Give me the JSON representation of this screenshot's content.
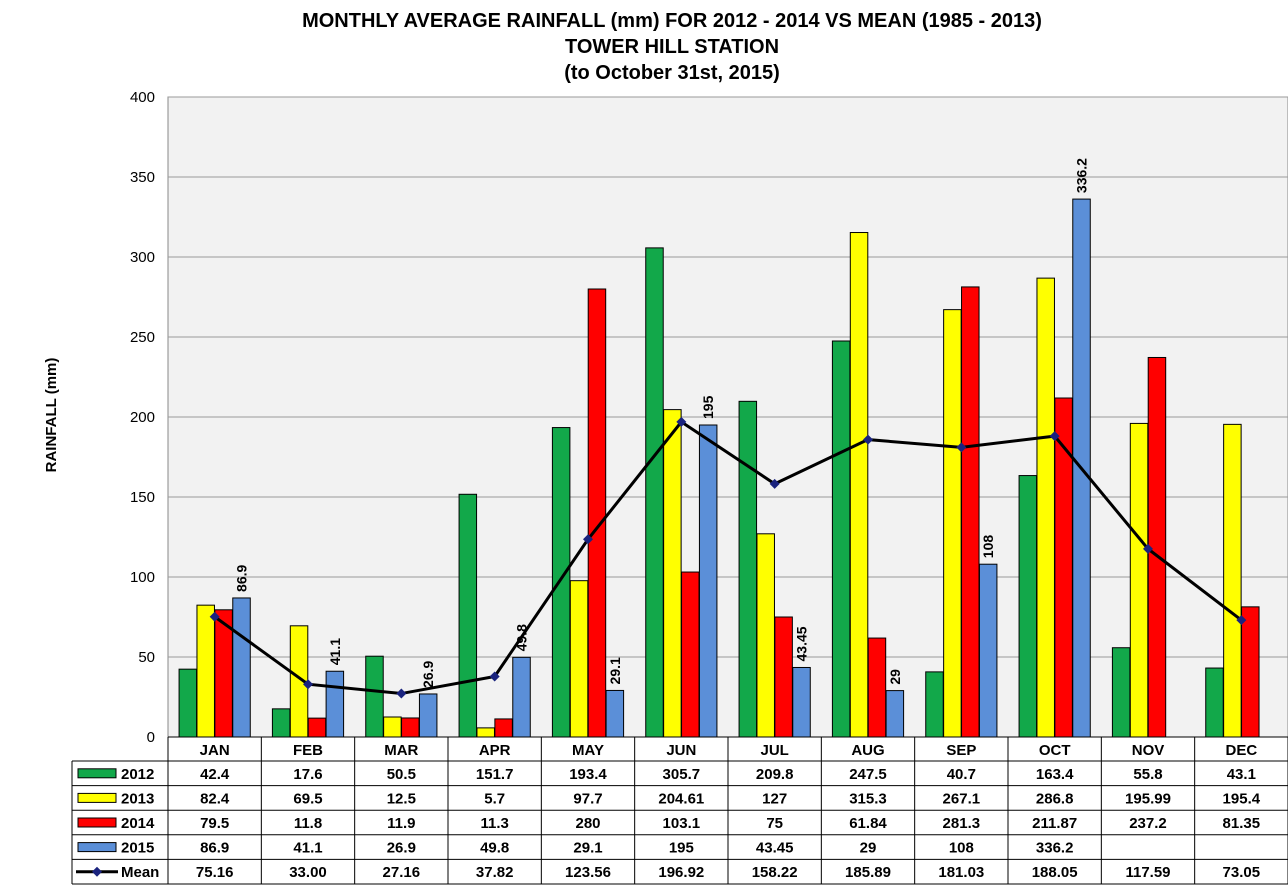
{
  "chart_data": {
    "type": "bar",
    "title": [
      "MONTHLY AVERAGE RAINFALL (mm) FOR 2012 - 2014 VS MEAN (1985 - 2013)",
      "TOWER HILL STATION",
      "(to October 31st, 2015)"
    ],
    "ylabel": "RAINFALL (mm)",
    "ylim": [
      0,
      400
    ],
    "yticks": [
      "0",
      "50",
      "100",
      "150",
      "200",
      "250",
      "300",
      "350",
      "400"
    ],
    "categories": [
      "JAN",
      "FEB",
      "MAR",
      "APR",
      "MAY",
      "JUN",
      "JUL",
      "AUG",
      "SEP",
      "OCT",
      "NOV",
      "DEC"
    ],
    "legend": "data table",
    "series": [
      {
        "name": "2012",
        "color": "#12a84a",
        "type": "bar",
        "labels": [
          "42.4",
          "17.6",
          "50.5",
          "151.7",
          "193.4",
          "305.7",
          "209.8",
          "247.5",
          "40.7",
          "163.4",
          "55.8",
          "43.1"
        ],
        "values": [
          42.4,
          17.6,
          50.5,
          151.7,
          193.4,
          305.7,
          209.8,
          247.5,
          40.7,
          163.4,
          55.8,
          43.1
        ]
      },
      {
        "name": "2013",
        "color": "#ffff00",
        "type": "bar",
        "labels": [
          "82.4",
          "69.5",
          "12.5",
          "5.7",
          "97.7",
          "204.61",
          "127",
          "315.3",
          "267.1",
          "286.8",
          "195.99",
          "195.4"
        ],
        "values": [
          82.4,
          69.5,
          12.5,
          5.7,
          97.7,
          204.61,
          127,
          315.3,
          267.1,
          286.8,
          195.99,
          195.4
        ]
      },
      {
        "name": "2014",
        "color": "#ff0000",
        "type": "bar",
        "labels": [
          "79.5",
          "11.8",
          "11.9",
          "11.3",
          "280",
          "103.1",
          "75",
          "61.84",
          "281.3",
          "211.87",
          "237.2",
          "81.35"
        ],
        "values": [
          79.5,
          11.8,
          11.9,
          11.3,
          280,
          103.1,
          75,
          61.84,
          281.3,
          211.87,
          237.2,
          81.35
        ]
      },
      {
        "name": "2015",
        "color": "#5b8fd8",
        "type": "bar",
        "show_data_labels": true,
        "labels": [
          "86.9",
          "41.1",
          "26.9",
          "49.8",
          "29.1",
          "195",
          "43.45",
          "29",
          "108",
          "336.2",
          "",
          ""
        ],
        "values": [
          86.9,
          41.1,
          26.9,
          49.8,
          29.1,
          195,
          43.45,
          29,
          108,
          336.2,
          null,
          null
        ]
      },
      {
        "name": "Mean",
        "color": "#000000",
        "marker_color": "#1a237e",
        "type": "line",
        "labels": [
          "75.16",
          "33.00",
          "27.16",
          "37.82",
          "123.56",
          "196.92",
          "158.22",
          "185.89",
          "181.03",
          "188.05",
          "117.59",
          "73.05"
        ],
        "values": [
          75.16,
          33.0,
          27.16,
          37.82,
          123.56,
          196.92,
          158.22,
          185.89,
          181.03,
          188.05,
          117.59,
          73.05
        ]
      }
    ]
  }
}
